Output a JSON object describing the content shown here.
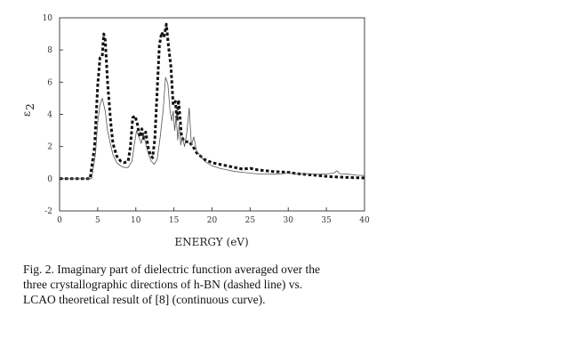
{
  "chart_data": {
    "type": "line",
    "xlabel": "ENERGY (eV)",
    "ylabel": "ε",
    "ylabel_sub": "2",
    "xlim": [
      0,
      40
    ],
    "ylim": [
      -2,
      10
    ],
    "x_ticks": [
      0,
      5,
      10,
      15,
      20,
      25,
      30,
      35,
      40
    ],
    "y_ticks": [
      -2,
      0,
      2,
      4,
      6,
      8,
      10
    ],
    "grid": false,
    "series": [
      {
        "style": "dashed",
        "x": [
          0,
          4,
          4.6,
          5,
          5.3,
          5.6,
          5.8,
          6.0,
          6.3,
          6.7,
          7.0,
          7.5,
          8.0,
          8.5,
          9.0,
          9.3,
          9.6,
          9.9,
          10.2,
          10.5,
          10.8,
          11.0,
          11.3,
          11.6,
          11.9,
          12.2,
          12.5,
          12.8,
          13.1,
          13.4,
          13.7,
          14.0,
          14.3,
          14.6,
          14.9,
          15.2,
          15.4,
          15.6,
          15.8,
          16.0,
          16.4,
          17.0,
          17.5,
          18.0,
          18.5,
          19.0,
          20,
          21,
          22,
          23,
          24,
          25,
          26,
          27,
          28,
          29,
          30,
          31,
          32,
          33,
          34,
          35,
          36,
          37,
          38,
          39,
          40
        ],
        "y": [
          0,
          0,
          2.0,
          5.8,
          7.5,
          7.6,
          9.0,
          8.6,
          6.0,
          3.5,
          2.2,
          1.4,
          1.1,
          1.0,
          1.1,
          2.0,
          3.8,
          3.9,
          3.4,
          2.6,
          3.1,
          2.5,
          2.9,
          2.0,
          1.5,
          1.3,
          2.5,
          5.5,
          8.3,
          9.1,
          8.8,
          9.6,
          8.2,
          7.0,
          4.6,
          4.8,
          3.6,
          4.9,
          3.8,
          2.6,
          2.3,
          2.3,
          2.0,
          1.6,
          1.4,
          1.2,
          1.0,
          0.9,
          0.8,
          0.7,
          0.6,
          0.65,
          0.55,
          0.5,
          0.45,
          0.42,
          0.4,
          0.32,
          0.28,
          0.24,
          0.2,
          0.15,
          0.12,
          0.1,
          0.08,
          0.06,
          0.05
        ]
      },
      {
        "style": "solid",
        "x": [
          0,
          4.2,
          4.7,
          5.0,
          5.3,
          5.6,
          6.0,
          6.3,
          6.7,
          7.0,
          7.5,
          8.0,
          8.5,
          9.0,
          9.5,
          9.8,
          10.1,
          10.4,
          10.7,
          11.0,
          11.3,
          11.6,
          12.0,
          12.4,
          12.8,
          13.2,
          13.6,
          13.9,
          14.2,
          14.5,
          14.7,
          14.9,
          15.1,
          15.3,
          15.5,
          15.7,
          15.9,
          16.1,
          16.4,
          16.7,
          17.0,
          17.3,
          17.6,
          18.0,
          18.5,
          19.0,
          20,
          21,
          22,
          23,
          24,
          25,
          26,
          27,
          28,
          29,
          30,
          31,
          32,
          33,
          34,
          35,
          36,
          36.4,
          36.7,
          37,
          38,
          39,
          40
        ],
        "y": [
          0,
          0,
          1.5,
          3.5,
          4.6,
          5.0,
          4.2,
          3.0,
          2.1,
          1.5,
          1.0,
          0.8,
          0.7,
          0.7,
          1.1,
          2.1,
          3.0,
          2.6,
          2.2,
          2.8,
          2.2,
          1.6,
          1.1,
          0.9,
          1.2,
          2.6,
          4.3,
          6.3,
          5.9,
          4.2,
          3.6,
          4.2,
          3.0,
          3.9,
          2.4,
          3.4,
          2.1,
          2.6,
          2.0,
          2.9,
          4.4,
          2.1,
          2.6,
          1.7,
          1.4,
          1.1,
          0.8,
          0.65,
          0.55,
          0.45,
          0.4,
          0.35,
          0.3,
          0.3,
          0.28,
          0.3,
          0.35,
          0.3,
          0.32,
          0.3,
          0.28,
          0.3,
          0.35,
          0.5,
          0.32,
          0.3,
          0.28,
          0.22,
          0.2
        ]
      }
    ]
  },
  "caption": {
    "line1": "Fig. 2. Imaginary part of dielectric function averaged over the",
    "line2": "three crystallographic directions of h-BN (dashed line) vs.",
    "line3": "LCAO theoretical result of [8] (continuous curve)."
  }
}
